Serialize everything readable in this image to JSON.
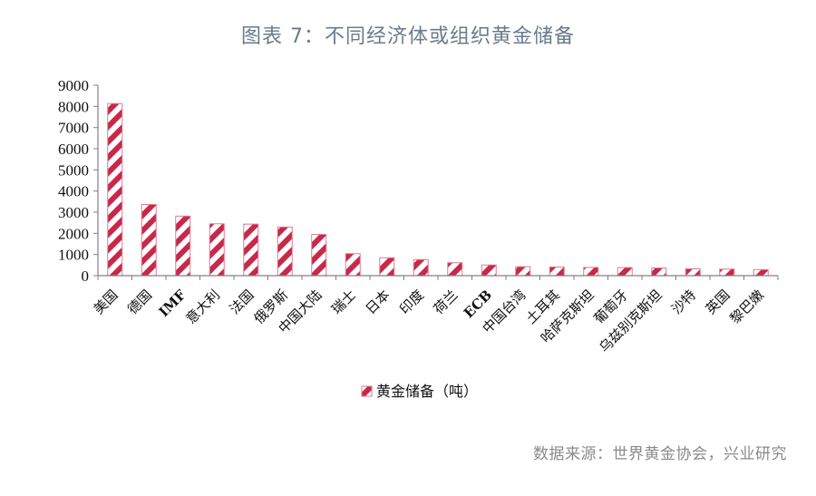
{
  "header": {
    "title": "图表 7：不同经济体或组织黄金储备"
  },
  "footer": {
    "source": "数据来源：世界黄金协会，兴业研究"
  },
  "legend": {
    "label": "黄金储备（吨）"
  },
  "colors": {
    "bar_stripe": "#c8284a",
    "bar_border": "#e07a90",
    "axis": "#808080",
    "title": "#6b7b8c",
    "source": "#8a8a8a"
  },
  "chart_data": {
    "type": "bar",
    "title": "图表 7：不同经济体或组织黄金储备",
    "xlabel": "",
    "ylabel": "",
    "ylim": [
      0,
      9000
    ],
    "yticks": [
      0,
      1000,
      2000,
      3000,
      4000,
      5000,
      6000,
      7000,
      8000,
      9000
    ],
    "grid": false,
    "legend_position": "bottom",
    "categories": [
      "美国",
      "德国",
      "IMF",
      "意大利",
      "法国",
      "俄罗斯",
      "中国大陆",
      "瑞士",
      "日本",
      "印度",
      "荷兰",
      "ECB",
      "中国台湾",
      "土耳其",
      "哈萨克斯坦",
      "葡萄牙",
      "乌兹别克斯坦",
      "沙特",
      "英国",
      "黎巴嫩"
    ],
    "series": [
      {
        "name": "黄金储备（吨）",
        "values": [
          8134,
          3364,
          2814,
          2452,
          2436,
          2299,
          1948,
          1040,
          846,
          760,
          612,
          505,
          424,
          410,
          390,
          383,
          363,
          323,
          310,
          287
        ]
      }
    ]
  }
}
